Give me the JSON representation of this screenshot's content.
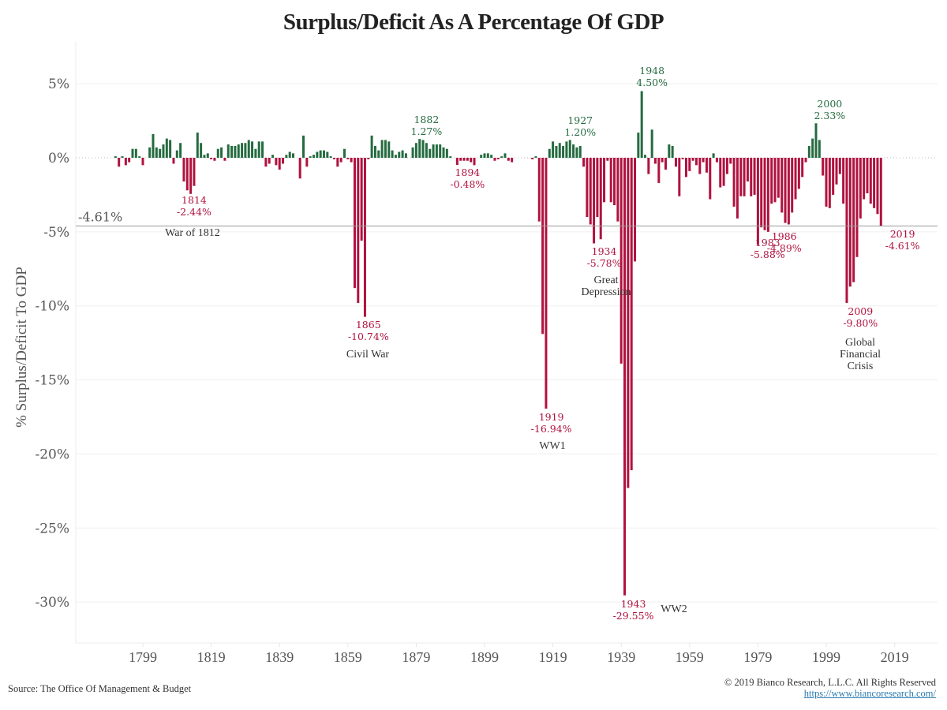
{
  "chart_data": {
    "type": "bar",
    "title": "Surplus/Deficit As A Percentage Of GDP",
    "xlabel": "",
    "ylabel": "% Surplus/Deficit To GDP",
    "ylim": [
      -32.5,
      7.5
    ],
    "yticks": [
      5,
      0,
      -5,
      -10,
      -15,
      -20,
      -25,
      -30
    ],
    "ytick_labels": [
      "5%",
      "0%",
      "-5%",
      "-10%",
      "-15%",
      "-20%",
      "-25%",
      "-30%"
    ],
    "xticks": [
      1799,
      1819,
      1839,
      1859,
      1879,
      1899,
      1919,
      1939,
      1959,
      1979,
      1999,
      2019
    ],
    "xlim": [
      1781,
      2032
    ],
    "grid": true,
    "positive_color": "#256b40",
    "negative_color": "#b0123f",
    "reference_line": {
      "value": -4.61,
      "label": "-4.61%"
    },
    "start_year": 1791,
    "values": [
      0.1,
      -0.6,
      0.1,
      -0.5,
      -0.3,
      0.6,
      0.6,
      0.1,
      -0.5,
      0.0,
      0.7,
      1.6,
      0.7,
      0.6,
      0.9,
      1.3,
      1.2,
      -0.4,
      0.5,
      1.0,
      -1.6,
      -2.2,
      -2.44,
      -1.9,
      1.7,
      1.0,
      0.2,
      0.3,
      -0.1,
      -0.2,
      0.6,
      0.7,
      -0.2,
      0.9,
      0.8,
      0.8,
      0.9,
      1.0,
      1.0,
      1.2,
      1.1,
      0.6,
      1.1,
      1.1,
      -0.6,
      -0.4,
      0.2,
      -0.5,
      -0.8,
      -0.4,
      0.2,
      0.4,
      0.3,
      0.0,
      -1.4,
      1.5,
      -0.6,
      0.1,
      0.2,
      0.4,
      0.5,
      0.5,
      0.4,
      0.1,
      -0.1,
      -0.6,
      -0.3,
      0.6,
      -0.1,
      -0.3,
      -8.8,
      -9.8,
      -5.6,
      -10.74,
      -0.1,
      1.5,
      0.8,
      0.5,
      1.2,
      1.2,
      1.1,
      0.5,
      0.2,
      0.4,
      0.5,
      0.3,
      0.0,
      0.7,
      1.0,
      1.27,
      1.2,
      1.0,
      0.6,
      0.9,
      0.9,
      0.9,
      0.7,
      0.6,
      0.1,
      0.0,
      -0.48,
      -0.2,
      -0.2,
      -0.2,
      -0.3,
      -0.5,
      0.0,
      0.2,
      0.3,
      0.3,
      0.2,
      -0.2,
      -0.1,
      0.1,
      0.3,
      -0.2,
      -0.3,
      0.0,
      0.0,
      0.0,
      0.0,
      0.0,
      -0.1,
      0.1,
      -4.3,
      -11.9,
      -16.94,
      0.6,
      1.1,
      0.8,
      1.0,
      0.8,
      1.1,
      1.2,
      0.9,
      0.7,
      0.8,
      -0.6,
      -4.0,
      -4.5,
      -5.78,
      -4.0,
      -5.5,
      -3.0,
      -0.2,
      -3.0,
      -3.2,
      -4.3,
      -13.9,
      -29.55,
      -22.3,
      -21.1,
      -7.0,
      1.7,
      4.5,
      0.2,
      -1.1,
      1.9,
      -0.4,
      -1.7,
      -0.3,
      -0.8,
      0.9,
      0.8,
      -0.6,
      -2.6,
      -0.1,
      -1.3,
      -0.9,
      -0.2,
      -0.5,
      -1.1,
      -0.3,
      -1.0,
      -2.8,
      0.3,
      -0.3,
      -2.0,
      -1.9,
      -1.1,
      -0.4,
      -3.3,
      -4.1,
      -2.6,
      -2.6,
      -1.6,
      -2.6,
      -2.5,
      -5.88,
      -4.7,
      -4.89,
      -5.0,
      -3.1,
      -3.0,
      -2.7,
      -3.7,
      -4.4,
      -4.5,
      -3.7,
      -2.8,
      -2.1,
      -1.3,
      -0.3,
      0.8,
      1.3,
      2.33,
      1.2,
      -1.2,
      -3.3,
      -3.4,
      -2.5,
      -1.8,
      -1.1,
      -3.1,
      -9.8,
      -8.7,
      -8.4,
      -6.7,
      -4.1,
      -2.8,
      -2.4,
      -3.1,
      -3.4,
      -3.8,
      -4.61
    ],
    "annotations": [
      {
        "year": 1814,
        "text": "1814",
        "value_text": "-2.44%",
        "type": "neg",
        "event": "War of 1812"
      },
      {
        "year": 1865,
        "text": "1865",
        "value_text": "-10.74%",
        "type": "neg",
        "event": "Civil War"
      },
      {
        "year": 1882,
        "text": "1882",
        "value_text": "1.27%",
        "type": "pos",
        "event": ""
      },
      {
        "year": 1894,
        "text": "1894",
        "value_text": "-0.48%",
        "type": "neg",
        "event": ""
      },
      {
        "year": 1919,
        "text": "1919",
        "value_text": "-16.94%",
        "type": "neg",
        "event": "WW1"
      },
      {
        "year": 1927,
        "text": "1927",
        "value_text": "1.20%",
        "type": "pos",
        "event": ""
      },
      {
        "year": 1934,
        "text": "1934",
        "value_text": "-5.78%",
        "type": "neg",
        "event": "Great Depression"
      },
      {
        "year": 1943,
        "text": "1943",
        "value_text": "-29.55%",
        "type": "neg",
        "event": "WW2"
      },
      {
        "year": 1948,
        "text": "1948",
        "value_text": "4.50%",
        "type": "pos",
        "event": ""
      },
      {
        "year": 1983,
        "text": "1983",
        "value_text": "-5.88%",
        "type": "neg",
        "event": ""
      },
      {
        "year": 1986,
        "text": "1986",
        "value_text": "-4.89%",
        "type": "neg",
        "event": ""
      },
      {
        "year": 2000,
        "text": "2000",
        "value_text": "2.33%",
        "type": "pos",
        "event": ""
      },
      {
        "year": 2009,
        "text": "2009",
        "value_text": "-9.80%",
        "type": "neg",
        "event": "Global Financial Crisis"
      },
      {
        "year": 2019,
        "text": "2019",
        "value_text": "-4.61%",
        "type": "neg",
        "event": ""
      }
    ]
  },
  "footer": {
    "source": "Source: The Office Of Management & Budget",
    "copyright": "© 2019 Bianco Research, L.L.C. All Rights Reserved",
    "url": "https://www.biancoresearch.com/"
  }
}
